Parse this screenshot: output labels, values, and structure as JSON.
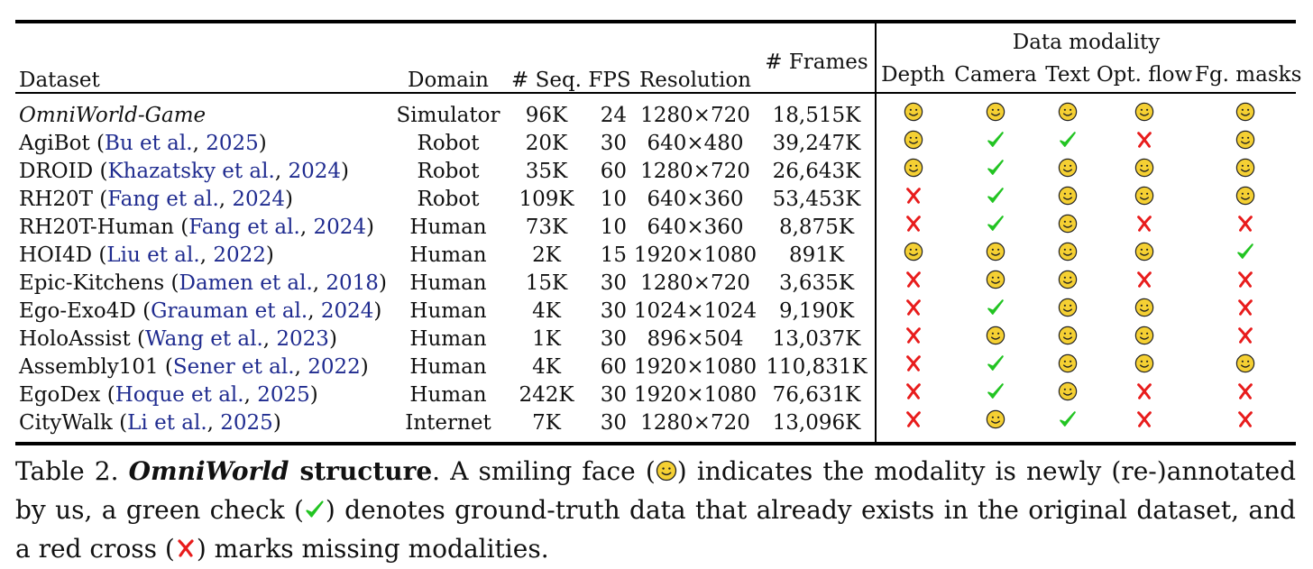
{
  "table": {
    "headers": {
      "dataset": "Dataset",
      "domain": "Domain",
      "seq": "# Seq.",
      "fps": "FPS",
      "resolution": "Resolution",
      "frames": "# Frames",
      "modality_group": "Data modality",
      "modalities": [
        "Depth",
        "Camera",
        "Text",
        "Opt. flow",
        "Fg. masks"
      ]
    },
    "rows": [
      {
        "name": "OmniWorld-Game",
        "cite": "",
        "year": "",
        "domain": "Simulator",
        "seq": "96K",
        "fps": "24",
        "resolution": "1280×720",
        "frames": "18,515K",
        "modality": [
          "smile",
          "smile",
          "smile",
          "smile",
          "smile"
        ]
      },
      {
        "name": "AgiBot",
        "cite": "Bu et al.",
        "year": "2025",
        "domain": "Robot",
        "seq": "20K",
        "fps": "30",
        "resolution": "640×480",
        "frames": "39,247K",
        "modality": [
          "smile",
          "check",
          "check",
          "cross",
          "smile"
        ]
      },
      {
        "name": "DROID",
        "cite": "Khazatsky et al.",
        "year": "2024",
        "domain": "Robot",
        "seq": "35K",
        "fps": "60",
        "resolution": "1280×720",
        "frames": "26,643K",
        "modality": [
          "smile",
          "check",
          "smile",
          "smile",
          "smile"
        ]
      },
      {
        "name": "RH20T",
        "cite": "Fang et al.",
        "year": "2024",
        "domain": "Robot",
        "seq": "109K",
        "fps": "10",
        "resolution": "640×360",
        "frames": "53,453K",
        "modality": [
          "cross",
          "check",
          "smile",
          "smile",
          "smile"
        ]
      },
      {
        "name": "RH20T-Human",
        "cite": "Fang et al.",
        "year": "2024",
        "domain": "Human",
        "seq": "73K",
        "fps": "10",
        "resolution": "640×360",
        "frames": "8,875K",
        "modality": [
          "cross",
          "check",
          "smile",
          "cross",
          "cross"
        ]
      },
      {
        "name": "HOI4D",
        "cite": "Liu et al.",
        "year": "2022",
        "domain": "Human",
        "seq": "2K",
        "fps": "15",
        "resolution": "1920×1080",
        "frames": "891K",
        "modality": [
          "smile",
          "smile",
          "smile",
          "smile",
          "check"
        ]
      },
      {
        "name": "Epic-Kitchens",
        "cite": "Damen et al.",
        "year": "2018",
        "domain": "Human",
        "seq": "15K",
        "fps": "30",
        "resolution": "1280×720",
        "frames": "3,635K",
        "modality": [
          "cross",
          "smile",
          "smile",
          "cross",
          "cross"
        ]
      },
      {
        "name": "Ego-Exo4D",
        "cite": "Grauman et al.",
        "year": "2024",
        "domain": "Human",
        "seq": "4K",
        "fps": "30",
        "resolution": "1024×1024",
        "frames": "9,190K",
        "modality": [
          "cross",
          "check",
          "smile",
          "smile",
          "cross"
        ]
      },
      {
        "name": "HoloAssist",
        "cite": "Wang et al.",
        "year": "2023",
        "domain": "Human",
        "seq": "1K",
        "fps": "30",
        "resolution": "896×504",
        "frames": "13,037K",
        "modality": [
          "cross",
          "smile",
          "smile",
          "smile",
          "cross"
        ]
      },
      {
        "name": "Assembly101",
        "cite": "Sener et al.",
        "year": "2022",
        "domain": "Human",
        "seq": "4K",
        "fps": "60",
        "resolution": "1920×1080",
        "frames": "110,831K",
        "modality": [
          "cross",
          "check",
          "smile",
          "smile",
          "smile"
        ]
      },
      {
        "name": "EgoDex",
        "cite": "Hoque et al.",
        "year": "2025",
        "domain": "Human",
        "seq": "242K",
        "fps": "30",
        "resolution": "1920×1080",
        "frames": "76,631K",
        "modality": [
          "cross",
          "check",
          "smile",
          "cross",
          "cross"
        ]
      },
      {
        "name": "CityWalk",
        "cite": "Li et al.",
        "year": "2025",
        "domain": "Internet",
        "seq": "7K",
        "fps": "30",
        "resolution": "1280×720",
        "frames": "13,096K",
        "modality": [
          "cross",
          "smile",
          "check",
          "cross",
          "cross"
        ]
      }
    ]
  },
  "caption": {
    "label": "Table 2.",
    "title_italic": "OmniWorld",
    "title_rest": "structure",
    "text1": ". A smiling face (",
    "text2": ") indicates the modality is newly (re-)annotated by us, a green check (",
    "text3": ") denotes ground-truth data that already exists in the original dataset, and a red cross (",
    "text4": ") marks missing modalities."
  },
  "colors": {
    "cite": "#1f2b8f",
    "smile_fill": "#f5d033",
    "check": "#22c422",
    "cross": "#e81c1c"
  }
}
